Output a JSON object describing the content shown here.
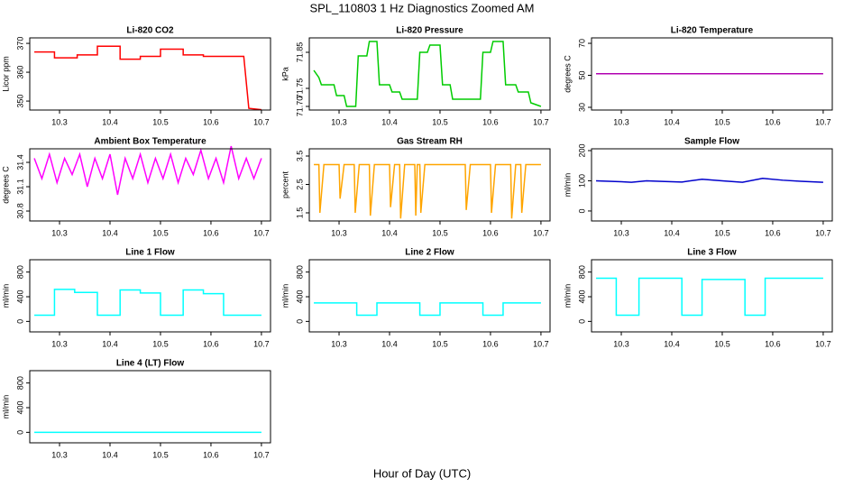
{
  "title": "SPL_110803 1 Hz Diagnostics Zoomed AM",
  "xlabel": "Hour of Day (UTC)",
  "chart_data": [
    {
      "type": "line",
      "title": "Li-820 CO2",
      "ylabel": "Licor ppm",
      "color": "#ff0000",
      "x": [
        10.25,
        10.29,
        10.29,
        10.335,
        10.335,
        10.375,
        10.375,
        10.42,
        10.42,
        10.46,
        10.46,
        10.5,
        10.5,
        10.545,
        10.545,
        10.585,
        10.585,
        10.665,
        10.675,
        10.7
      ],
      "values": [
        367,
        367,
        365,
        365,
        366,
        366,
        369,
        369,
        364.5,
        364.5,
        365.5,
        365.5,
        368,
        368,
        366,
        366,
        365.5,
        365.5,
        347.5,
        347
      ],
      "xlim": [
        10.241,
        10.718
      ],
      "xticks": [
        10.3,
        10.4,
        10.5,
        10.6,
        10.7
      ],
      "ylim": [
        346.9,
        371.9
      ],
      "yticks": [
        350,
        360,
        370
      ]
    },
    {
      "type": "line",
      "title": "Li-820 Pressure",
      "ylabel": "kPa",
      "color": "#00cc00",
      "x": [
        10.25,
        10.26,
        10.265,
        10.29,
        10.295,
        10.31,
        10.315,
        10.333,
        10.338,
        10.355,
        10.36,
        10.375,
        10.38,
        10.4,
        10.405,
        10.42,
        10.425,
        10.455,
        10.46,
        10.475,
        10.48,
        10.5,
        10.505,
        10.52,
        10.525,
        10.58,
        10.585,
        10.6,
        10.605,
        10.625,
        10.63,
        10.65,
        10.655,
        10.675,
        10.68,
        10.7
      ],
      "values": [
        71.8,
        71.78,
        71.76,
        71.76,
        71.73,
        71.73,
        71.7,
        71.7,
        71.84,
        71.84,
        71.88,
        71.88,
        71.76,
        71.76,
        71.74,
        71.74,
        71.72,
        71.72,
        71.85,
        71.85,
        71.87,
        71.87,
        71.76,
        71.76,
        71.72,
        71.72,
        71.85,
        71.85,
        71.88,
        71.88,
        71.76,
        71.76,
        71.74,
        71.74,
        71.71,
        71.7
      ],
      "xlim": [
        10.241,
        10.718
      ],
      "xticks": [
        10.3,
        10.4,
        10.5,
        10.6,
        10.7
      ],
      "ylim": [
        71.69,
        71.89
      ],
      "yticks": [
        {
          "value": 71.7,
          "label": "71.70"
        },
        {
          "value": 71.75,
          "label": "71.75"
        },
        {
          "value": 71.85,
          "label": "71.85"
        }
      ]
    },
    {
      "type": "line",
      "title": "Li-820 Temperature",
      "ylabel": "degrees C",
      "color": "#b000b0",
      "x": [
        10.25,
        10.7
      ],
      "values": [
        51,
        51
      ],
      "xlim": [
        10.241,
        10.718
      ],
      "xticks": [
        10.3,
        10.4,
        10.5,
        10.6,
        10.7
      ],
      "ylim": [
        28.3,
        73.4
      ],
      "yticks": [
        30,
        50,
        70
      ]
    },
    {
      "type": "line",
      "title": "Ambient Box Temperature",
      "ylabel": "degrees C",
      "color": "#ff00ff",
      "x": [
        10.25,
        10.265,
        10.28,
        10.295,
        10.31,
        10.325,
        10.34,
        10.355,
        10.37,
        10.385,
        10.4,
        10.415,
        10.43,
        10.445,
        10.46,
        10.475,
        10.49,
        10.505,
        10.52,
        10.535,
        10.55,
        10.565,
        10.58,
        10.595,
        10.61,
        10.625,
        10.64,
        10.655,
        10.67,
        10.685,
        10.7
      ],
      "values": [
        31.45,
        31.2,
        31.5,
        31.15,
        31.45,
        31.25,
        31.5,
        31.1,
        31.45,
        31.2,
        31.5,
        31.0,
        31.45,
        31.2,
        31.5,
        31.15,
        31.45,
        31.2,
        31.5,
        31.15,
        31.45,
        31.25,
        31.55,
        31.2,
        31.45,
        31.15,
        31.6,
        31.2,
        31.45,
        31.2,
        31.45
      ],
      "xlim": [
        10.241,
        10.718
      ],
      "xticks": [
        10.3,
        10.4,
        10.5,
        10.6,
        10.7
      ],
      "ylim": [
        30.678,
        31.567
      ],
      "yticks": [
        30.8,
        31.1,
        31.4
      ]
    },
    {
      "type": "line",
      "title": "Gas Stream RH",
      "ylabel": "percent",
      "color": "#ffa500",
      "x": [
        10.25,
        10.26,
        10.262,
        10.27,
        10.3,
        10.302,
        10.31,
        10.33,
        10.332,
        10.34,
        10.36,
        10.362,
        10.37,
        10.4,
        10.402,
        10.41,
        10.42,
        10.422,
        10.43,
        10.45,
        10.452,
        10.455,
        10.46,
        10.462,
        10.47,
        10.55,
        10.552,
        10.56,
        10.6,
        10.602,
        10.61,
        10.64,
        10.642,
        10.65,
        10.66,
        10.662,
        10.67,
        10.7
      ],
      "values": [
        3.2,
        3.2,
        1.5,
        3.2,
        3.2,
        2.0,
        3.2,
        3.2,
        1.5,
        3.2,
        3.2,
        1.4,
        3.2,
        3.2,
        1.7,
        3.2,
        3.2,
        1.3,
        3.2,
        3.2,
        1.4,
        3.2,
        3.2,
        1.5,
        3.2,
        3.2,
        1.6,
        3.2,
        3.2,
        1.5,
        3.2,
        3.2,
        1.3,
        3.2,
        3.2,
        1.5,
        3.2,
        3.2
      ],
      "xlim": [
        10.241,
        10.718
      ],
      "xticks": [
        10.3,
        10.4,
        10.5,
        10.6,
        10.7
      ],
      "ylim": [
        1.214,
        3.754
      ],
      "yticks": [
        1.5,
        2.5,
        3.5
      ]
    },
    {
      "type": "line",
      "title": "Sample Flow",
      "ylabel": "ml/min",
      "color": "#0000cc",
      "x": [
        10.25,
        10.3,
        10.32,
        10.35,
        10.38,
        10.42,
        10.46,
        10.5,
        10.54,
        10.58,
        10.62,
        10.66,
        10.7
      ],
      "values": [
        100,
        97,
        95,
        100,
        98,
        96,
        105,
        100,
        95,
        108,
        102,
        98,
        95
      ],
      "xlim": [
        10.241,
        10.718
      ],
      "xticks": [
        10.3,
        10.4,
        10.5,
        10.6,
        10.7
      ],
      "ylim": [
        -33,
        206
      ],
      "yticks": [
        0,
        100,
        200
      ]
    },
    {
      "type": "line",
      "title": "Line 1 Flow",
      "ylabel": "ml/min",
      "color": "#00ffff",
      "x": [
        10.25,
        10.29,
        10.29,
        10.33,
        10.33,
        10.375,
        10.375,
        10.42,
        10.42,
        10.46,
        10.46,
        10.5,
        10.5,
        10.545,
        10.545,
        10.585,
        10.585,
        10.625,
        10.625,
        10.7
      ],
      "values": [
        100,
        100,
        520,
        520,
        470,
        470,
        100,
        100,
        510,
        510,
        460,
        460,
        100,
        100,
        510,
        510,
        450,
        450,
        100,
        100
      ],
      "xlim": [
        10.241,
        10.718
      ],
      "xticks": [
        10.3,
        10.4,
        10.5,
        10.6,
        10.7
      ],
      "ylim": [
        -170,
        1000
      ],
      "yticks": [
        0,
        400,
        800
      ]
    },
    {
      "type": "line",
      "title": "Line 2 Flow",
      "ylabel": "ml/min",
      "color": "#00ffff",
      "x": [
        10.25,
        10.335,
        10.335,
        10.375,
        10.375,
        10.46,
        10.46,
        10.5,
        10.5,
        10.585,
        10.585,
        10.625,
        10.625,
        10.7
      ],
      "values": [
        300,
        300,
        100,
        100,
        300,
        300,
        100,
        100,
        300,
        300,
        100,
        100,
        300,
        300
      ],
      "xlim": [
        10.241,
        10.718
      ],
      "xticks": [
        10.3,
        10.4,
        10.5,
        10.6,
        10.7
      ],
      "ylim": [
        -170,
        1000
      ],
      "yticks": [
        0,
        400,
        800
      ]
    },
    {
      "type": "line",
      "title": "Line 3 Flow",
      "ylabel": "ml/min",
      "color": "#00ffff",
      "x": [
        10.25,
        10.29,
        10.29,
        10.335,
        10.335,
        10.42,
        10.42,
        10.46,
        10.46,
        10.545,
        10.545,
        10.585,
        10.585,
        10.7
      ],
      "values": [
        700,
        700,
        100,
        100,
        700,
        700,
        100,
        100,
        680,
        680,
        100,
        100,
        700,
        700
      ],
      "xlim": [
        10.241,
        10.718
      ],
      "xticks": [
        10.3,
        10.4,
        10.5,
        10.6,
        10.7
      ],
      "ylim": [
        -170,
        1000
      ],
      "yticks": [
        0,
        400,
        800
      ]
    },
    {
      "type": "line",
      "title": "Line 4 (LT) Flow",
      "ylabel": "ml/min",
      "color": "#00ffff",
      "x": [
        10.25,
        10.7
      ],
      "values": [
        0,
        0
      ],
      "xlim": [
        10.241,
        10.718
      ],
      "xticks": [
        10.3,
        10.4,
        10.5,
        10.6,
        10.7
      ],
      "ylim": [
        -170,
        1000
      ],
      "yticks": [
        0,
        400,
        800
      ]
    }
  ]
}
